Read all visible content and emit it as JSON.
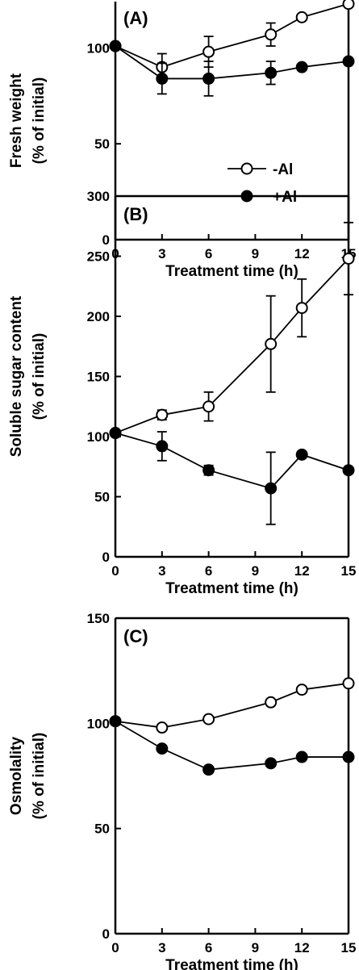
{
  "chart_data": [
    {
      "type": "line",
      "panel_label": "(A)",
      "xlabel": "Treatment time (h)",
      "ylabel": [
        "Fresh weight",
        "(% of initial)"
      ],
      "xlim": [
        0,
        15
      ],
      "ylim": [
        0,
        125
      ],
      "xticks": [
        0,
        3,
        6,
        9,
        12,
        15
      ],
      "yticks": [
        0,
        50,
        100
      ],
      "legend": "center-right",
      "series": [
        {
          "name": "-Al",
          "marker": "open-circle",
          "x": [
            0,
            3,
            6,
            10,
            12,
            15
          ],
          "y": [
            101,
            90,
            98,
            107,
            116,
            123
          ],
          "err": [
            0,
            7,
            8,
            6,
            0,
            0
          ]
        },
        {
          "name": "+Al",
          "marker": "filled-circle",
          "x": [
            0,
            3,
            6,
            10,
            12,
            15
          ],
          "y": [
            101,
            84,
            84,
            87,
            90,
            93
          ],
          "err": [
            0,
            8,
            9,
            6,
            0,
            0
          ]
        }
      ]
    },
    {
      "type": "line",
      "panel_label": "(B)",
      "xlabel": "Treatment time (h)",
      "ylabel": [
        "Soluble sugar content",
        "(% of initial)"
      ],
      "xlim": [
        0,
        15
      ],
      "ylim": [
        0,
        300
      ],
      "xticks": [
        0,
        3,
        6,
        9,
        12,
        15
      ],
      "yticks": [
        0,
        50,
        100,
        150,
        200,
        250,
        300
      ],
      "series": [
        {
          "name": "-Al",
          "marker": "open-circle",
          "x": [
            0,
            3,
            6,
            10,
            12,
            15
          ],
          "y": [
            103,
            118,
            125,
            177,
            207,
            248
          ],
          "err": [
            0,
            4,
            12,
            40,
            24,
            30
          ]
        },
        {
          "name": "+Al",
          "marker": "filled-circle",
          "x": [
            0,
            3,
            6,
            10,
            12,
            15
          ],
          "y": [
            103,
            92,
            72,
            57,
            85,
            72
          ],
          "err": [
            0,
            12,
            4,
            30,
            0,
            0
          ]
        }
      ]
    },
    {
      "type": "line",
      "panel_label": "(C)",
      "xlabel": "Treatment time (h)",
      "ylabel": [
        "Osmolality",
        "(% of initial)"
      ],
      "xlim": [
        0,
        15
      ],
      "ylim": [
        0,
        150
      ],
      "xticks": [
        0,
        3,
        6,
        9,
        12,
        15
      ],
      "yticks": [
        0,
        50,
        100,
        150
      ],
      "series": [
        {
          "name": "-Al",
          "marker": "open-circle",
          "x": [
            0,
            3,
            6,
            10,
            12,
            15
          ],
          "y": [
            101,
            98,
            102,
            110,
            116,
            119
          ],
          "err": [
            0,
            0,
            0,
            0,
            0,
            0
          ]
        },
        {
          "name": "+Al",
          "marker": "filled-circle",
          "x": [
            0,
            3,
            6,
            10,
            12,
            15
          ],
          "y": [
            101,
            88,
            78,
            81,
            84,
            84
          ],
          "err": [
            0,
            0,
            0,
            0,
            0,
            0
          ]
        }
      ]
    }
  ]
}
